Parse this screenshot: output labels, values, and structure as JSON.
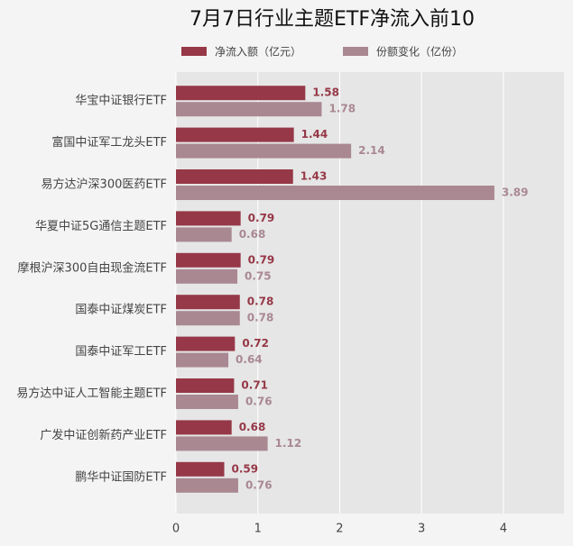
{
  "chart_data": {
    "type": "bar",
    "orientation": "horizontal",
    "title": "7月7日行业主题ETF净流入前10",
    "categories": [
      "华宝中证银行ETF",
      "富国中证军工龙头ETF",
      "易方达沪深300医药ETF",
      "华夏中证5G通信主题ETF",
      "摩根沪深300自由现金流ETF",
      "国泰中证煤炭ETF",
      "国泰中证军工ETF",
      "易方达中证人工智能主题ETF",
      "广发中证创新药产业ETF",
      "鹏华中证国防ETF"
    ],
    "series": [
      {
        "name": "净流入额（亿元）",
        "color": "#963847",
        "values": [
          1.58,
          1.44,
          1.43,
          0.79,
          0.79,
          0.78,
          0.72,
          0.71,
          0.68,
          0.59
        ]
      },
      {
        "name": "份额变化（亿份）",
        "color": "#a98892",
        "values": [
          1.78,
          2.14,
          3.89,
          0.68,
          0.75,
          0.78,
          0.64,
          0.76,
          1.12,
          0.76
        ]
      }
    ],
    "xlim": [
      0,
      4.74
    ],
    "xticks": [
      0,
      1,
      2,
      3,
      4
    ],
    "grid": true,
    "legend": "top"
  }
}
